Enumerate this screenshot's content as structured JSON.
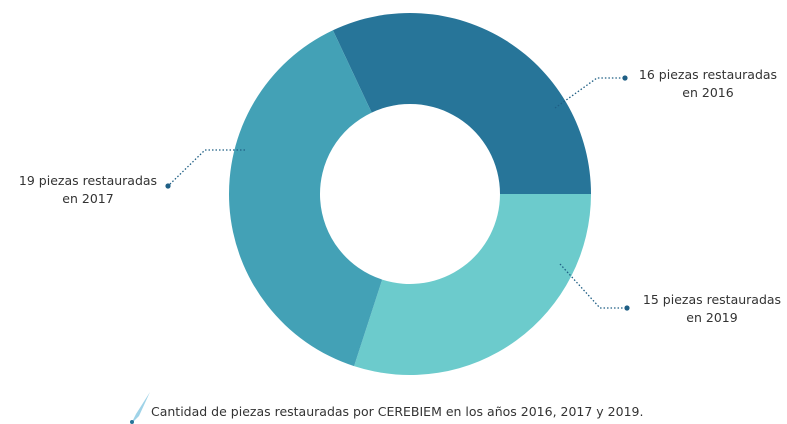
{
  "chart_data": {
    "type": "donut",
    "values": [
      16,
      15,
      19
    ],
    "value_labels": [
      "16 piezas restauradas en 2016",
      "15 piezas restauradas en 2019",
      "19 piezas restauradas en 2017"
    ],
    "colors": [
      "#277599",
      "#6ccbcc",
      "#43a1b6"
    ],
    "caption": "Cantidad de piezas restauradas por CEREBIEM en los años 2016, 2017 y 2019."
  }
}
